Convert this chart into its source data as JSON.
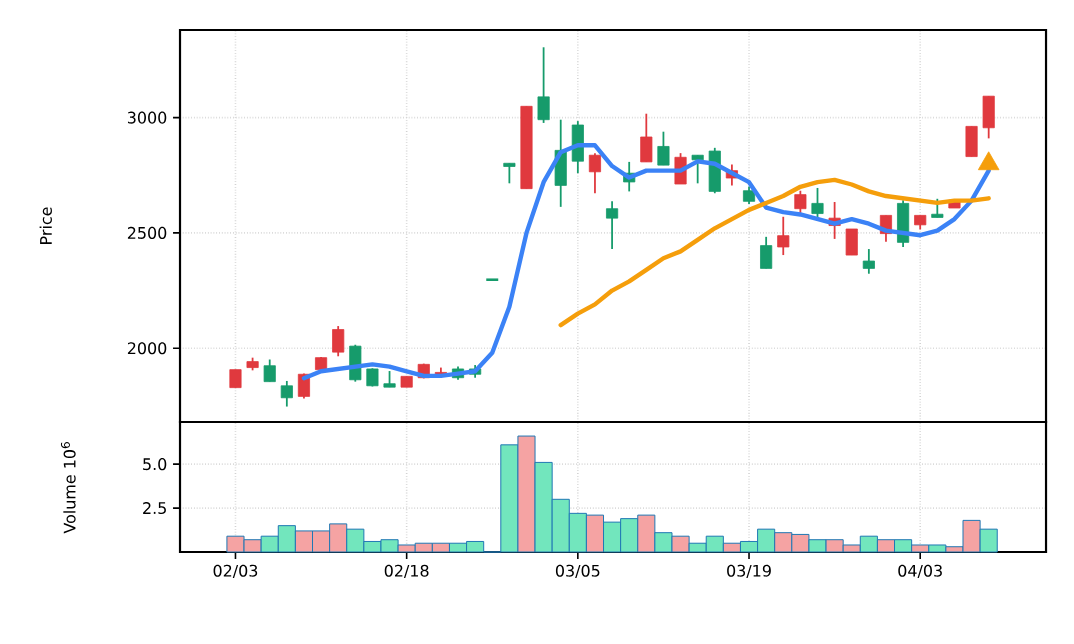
{
  "chart_data": [
    {
      "type": "candlestick",
      "tick_labels": "y",
      "ylabel": "Price",
      "ylim": [
        1680,
        3380
      ],
      "yticks": [
        2000,
        2500,
        3000
      ],
      "grid": true,
      "series": [
        {
          "type": "candlestick",
          "ohlc": [
            [
              1829,
              1907,
              1829,
              1907
            ],
            [
              1916,
              1959,
              1904,
              1942
            ],
            [
              1924,
              1951,
              1855,
              1855
            ],
            [
              1837,
              1858,
              1747,
              1785
            ],
            [
              1791,
              1890,
              1782,
              1887
            ],
            [
              1907,
              1962,
              1904,
              1959
            ],
            [
              1983,
              2096,
              1965,
              2081
            ],
            [
              2009,
              2015,
              1855,
              1863
            ],
            [
              1910,
              1913,
              1834,
              1837
            ],
            [
              1846,
              1901,
              1831,
              1831
            ],
            [
              1831,
              1878,
              1831,
              1878
            ],
            [
              1872,
              1933,
              1869,
              1930
            ],
            [
              1878,
              1916,
              1872,
              1895
            ],
            [
              1910,
              1921,
              1863,
              1872
            ],
            [
              1910,
              1927,
              1872,
              1887
            ],
            [
              2297,
              2297,
              2297,
              2297
            ],
            [
              2802,
              2802,
              2715,
              2788
            ],
            [
              2692,
              3049,
              2692,
              3049
            ],
            [
              3090,
              3305,
              2977,
              2991
            ],
            [
              2858,
              2991,
              2613,
              2706
            ],
            [
              2968,
              2985,
              2759,
              2811
            ],
            [
              2765,
              2846,
              2672,
              2837
            ],
            [
              2605,
              2637,
              2430,
              2564
            ],
            [
              2759,
              2808,
              2680,
              2721
            ],
            [
              2808,
              3017,
              2808,
              2916
            ],
            [
              2875,
              2939,
              2794,
              2794
            ],
            [
              2712,
              2846,
              2712,
              2828
            ],
            [
              2837,
              2837,
              2715,
              2817
            ],
            [
              2855,
              2869,
              2672,
              2680
            ],
            [
              2738,
              2797,
              2706,
              2770
            ],
            [
              2683,
              2701,
              2625,
              2637
            ],
            [
              2445,
              2483,
              2346,
              2346
            ],
            [
              2439,
              2570,
              2404,
              2488
            ],
            [
              2605,
              2683,
              2584,
              2666
            ],
            [
              2628,
              2695,
              2564,
              2584
            ],
            [
              2532,
              2634,
              2474,
              2564
            ],
            [
              2404,
              2517,
              2404,
              2517
            ],
            [
              2378,
              2430,
              2323,
              2346
            ],
            [
              2497,
              2576,
              2462,
              2576
            ],
            [
              2628,
              2642,
              2439,
              2459
            ],
            [
              2535,
              2576,
              2515,
              2576
            ],
            [
              2581,
              2648,
              2567,
              2567
            ],
            [
              2608,
              2642,
              2608,
              2642
            ],
            [
              2831,
              2962,
              2831,
              2962
            ],
            [
              2956,
              3093,
              2910,
              3093
            ]
          ],
          "colors": [
            "#e0393e",
            "#e0393e",
            "#169b6b",
            "#169b6b",
            "#e0393e",
            "#e0393e",
            "#e0393e",
            "#169b6b",
            "#169b6b",
            "#169b6b",
            "#e0393e",
            "#e0393e",
            "#e0393e",
            "#169b6b",
            "#169b6b",
            "#169b6b",
            "#169b6b",
            "#e0393e",
            "#169b6b",
            "#169b6b",
            "#169b6b",
            "#e0393e",
            "#169b6b",
            "#169b6b",
            "#e0393e",
            "#169b6b",
            "#e0393e",
            "#169b6b",
            "#169b6b",
            "#e0393e",
            "#169b6b",
            "#169b6b",
            "#e0393e",
            "#e0393e",
            "#169b6b",
            "#e0393e",
            "#e0393e",
            "#169b6b",
            "#e0393e",
            "#169b6b",
            "#e0393e",
            "#169b6b",
            "#e0393e",
            "#e0393e",
            "#e0393e"
          ]
        },
        {
          "type": "line",
          "color": "#3b82f6",
          "values": [
            null,
            null,
            null,
            null,
            1870,
            1900,
            1910,
            1920,
            1930,
            1920,
            1900,
            1880,
            1880,
            1890,
            1900,
            1980,
            2180,
            2500,
            2720,
            2850,
            2880,
            2880,
            2790,
            2740,
            2770,
            2770,
            2770,
            2810,
            2800,
            2760,
            2720,
            2610,
            2590,
            2580,
            2560,
            2540,
            2560,
            2540,
            2510,
            2500,
            2490,
            2510,
            2560,
            2640,
            2770
          ]
        },
        {
          "type": "line",
          "color": "#f59e0b",
          "values": [
            null,
            null,
            null,
            null,
            null,
            null,
            null,
            null,
            null,
            null,
            null,
            null,
            null,
            null,
            null,
            null,
            null,
            null,
            null,
            2100,
            2150,
            2190,
            2250,
            2290,
            2340,
            2390,
            2420,
            2470,
            2520,
            2560,
            2600,
            2630,
            2660,
            2700,
            2720,
            2730,
            2710,
            2680,
            2660,
            2650,
            2640,
            2630,
            2640,
            2640,
            2650
          ]
        },
        {
          "type": "scatter",
          "marker": "triangle",
          "color": "#f59e0b",
          "values": [
            null,
            null,
            null,
            null,
            null,
            null,
            null,
            null,
            null,
            null,
            null,
            null,
            null,
            null,
            null,
            null,
            null,
            null,
            null,
            null,
            null,
            null,
            null,
            null,
            null,
            null,
            null,
            null,
            null,
            null,
            null,
            null,
            null,
            null,
            null,
            null,
            null,
            null,
            null,
            null,
            null,
            null,
            null,
            null,
            2800
          ]
        }
      ]
    },
    {
      "type": "bar",
      "categories": [
        "02/03",
        null,
        null,
        null,
        null,
        null,
        null,
        null,
        null,
        null,
        "02/18",
        null,
        null,
        null,
        null,
        null,
        null,
        null,
        null,
        null,
        "03/05",
        null,
        null,
        null,
        null,
        null,
        null,
        null,
        null,
        null,
        "03/19",
        null,
        null,
        null,
        null,
        null,
        null,
        null,
        null,
        null,
        "04/03",
        null,
        null,
        null,
        null
      ],
      "ylabel": "Volume  10$^{6}$",
      "ylim": [
        0,
        7.4
      ],
      "yticks": [
        {
          "value": 2.5,
          "label": "2.5"
        },
        {
          "value": 5,
          "label": "5.0"
        }
      ],
      "grid": true,
      "values": [
        0.9,
        0.7,
        0.9,
        1.5,
        1.2,
        1.2,
        1.6,
        1.3,
        0.6,
        0.7,
        0.4,
        0.5,
        0.5,
        0.5,
        0.6,
        0,
        6.1,
        6.6,
        5.1,
        3.0,
        2.2,
        2.1,
        1.7,
        1.9,
        2.1,
        1.1,
        0.9,
        0.5,
        0.9,
        0.5,
        0.6,
        1.3,
        1.1,
        1.0,
        0.7,
        0.7,
        0.4,
        0.9,
        0.7,
        0.7,
        0.4,
        0.4,
        0.3,
        1.8,
        1.3
      ],
      "colors": [
        "#f5a3a3",
        "#f5a3a3",
        "#72e6bd",
        "#72e6bd",
        "#f5a3a3",
        "#f5a3a3",
        "#f5a3a3",
        "#72e6bd",
        "#72e6bd",
        "#72e6bd",
        "#f5a3a3",
        "#f5a3a3",
        "#f5a3a3",
        "#72e6bd",
        "#72e6bd",
        "#72e6bd",
        "#72e6bd",
        "#f5a3a3",
        "#72e6bd",
        "#72e6bd",
        "#72e6bd",
        "#f5a3a3",
        "#72e6bd",
        "#72e6bd",
        "#f5a3a3",
        "#72e6bd",
        "#f5a3a3",
        "#72e6bd",
        "#72e6bd",
        "#f5a3a3",
        "#72e6bd",
        "#72e6bd",
        "#f5a3a3",
        "#f5a3a3",
        "#72e6bd",
        "#f5a3a3",
        "#f5a3a3",
        "#72e6bd",
        "#f5a3a3",
        "#72e6bd",
        "#f5a3a3",
        "#72e6bd",
        "#f5a3a3",
        "#f5a3a3",
        "#72e6bd"
      ]
    }
  ]
}
